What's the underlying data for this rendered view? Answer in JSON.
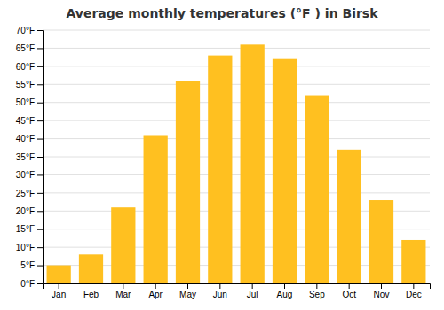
{
  "chart_data": {
    "type": "bar",
    "title": "Average monthly temperatures (°F ) in Birsk",
    "categories": [
      "Jan",
      "Feb",
      "Mar",
      "Apr",
      "May",
      "Jun",
      "Jul",
      "Aug",
      "Sep",
      "Oct",
      "Nov",
      "Dec"
    ],
    "values": [
      5,
      8,
      21,
      41,
      56,
      63,
      66,
      62,
      52,
      37,
      23,
      12
    ],
    "color": "#FFC020",
    "ylim": [
      0,
      70
    ],
    "yticks": [
      {
        "value": 0,
        "label": "0°F"
      },
      {
        "value": 5,
        "label": "5°F"
      },
      {
        "value": 10,
        "label": "10°F"
      },
      {
        "value": 15,
        "label": "15°F"
      },
      {
        "value": 20,
        "label": "20°F"
      },
      {
        "value": 25,
        "label": "25°F"
      },
      {
        "value": 30,
        "label": "30°F"
      },
      {
        "value": 35,
        "label": "35°F"
      },
      {
        "value": 40,
        "label": "40°F"
      },
      {
        "value": 45,
        "label": "45°F"
      },
      {
        "value": 50,
        "label": "50°F"
      },
      {
        "value": 55,
        "label": "55°F"
      },
      {
        "value": 60,
        "label": "60°F"
      },
      {
        "value": 65,
        "label": "65°F"
      },
      {
        "value": 70,
        "label": "70°F"
      }
    ],
    "grid": true
  }
}
